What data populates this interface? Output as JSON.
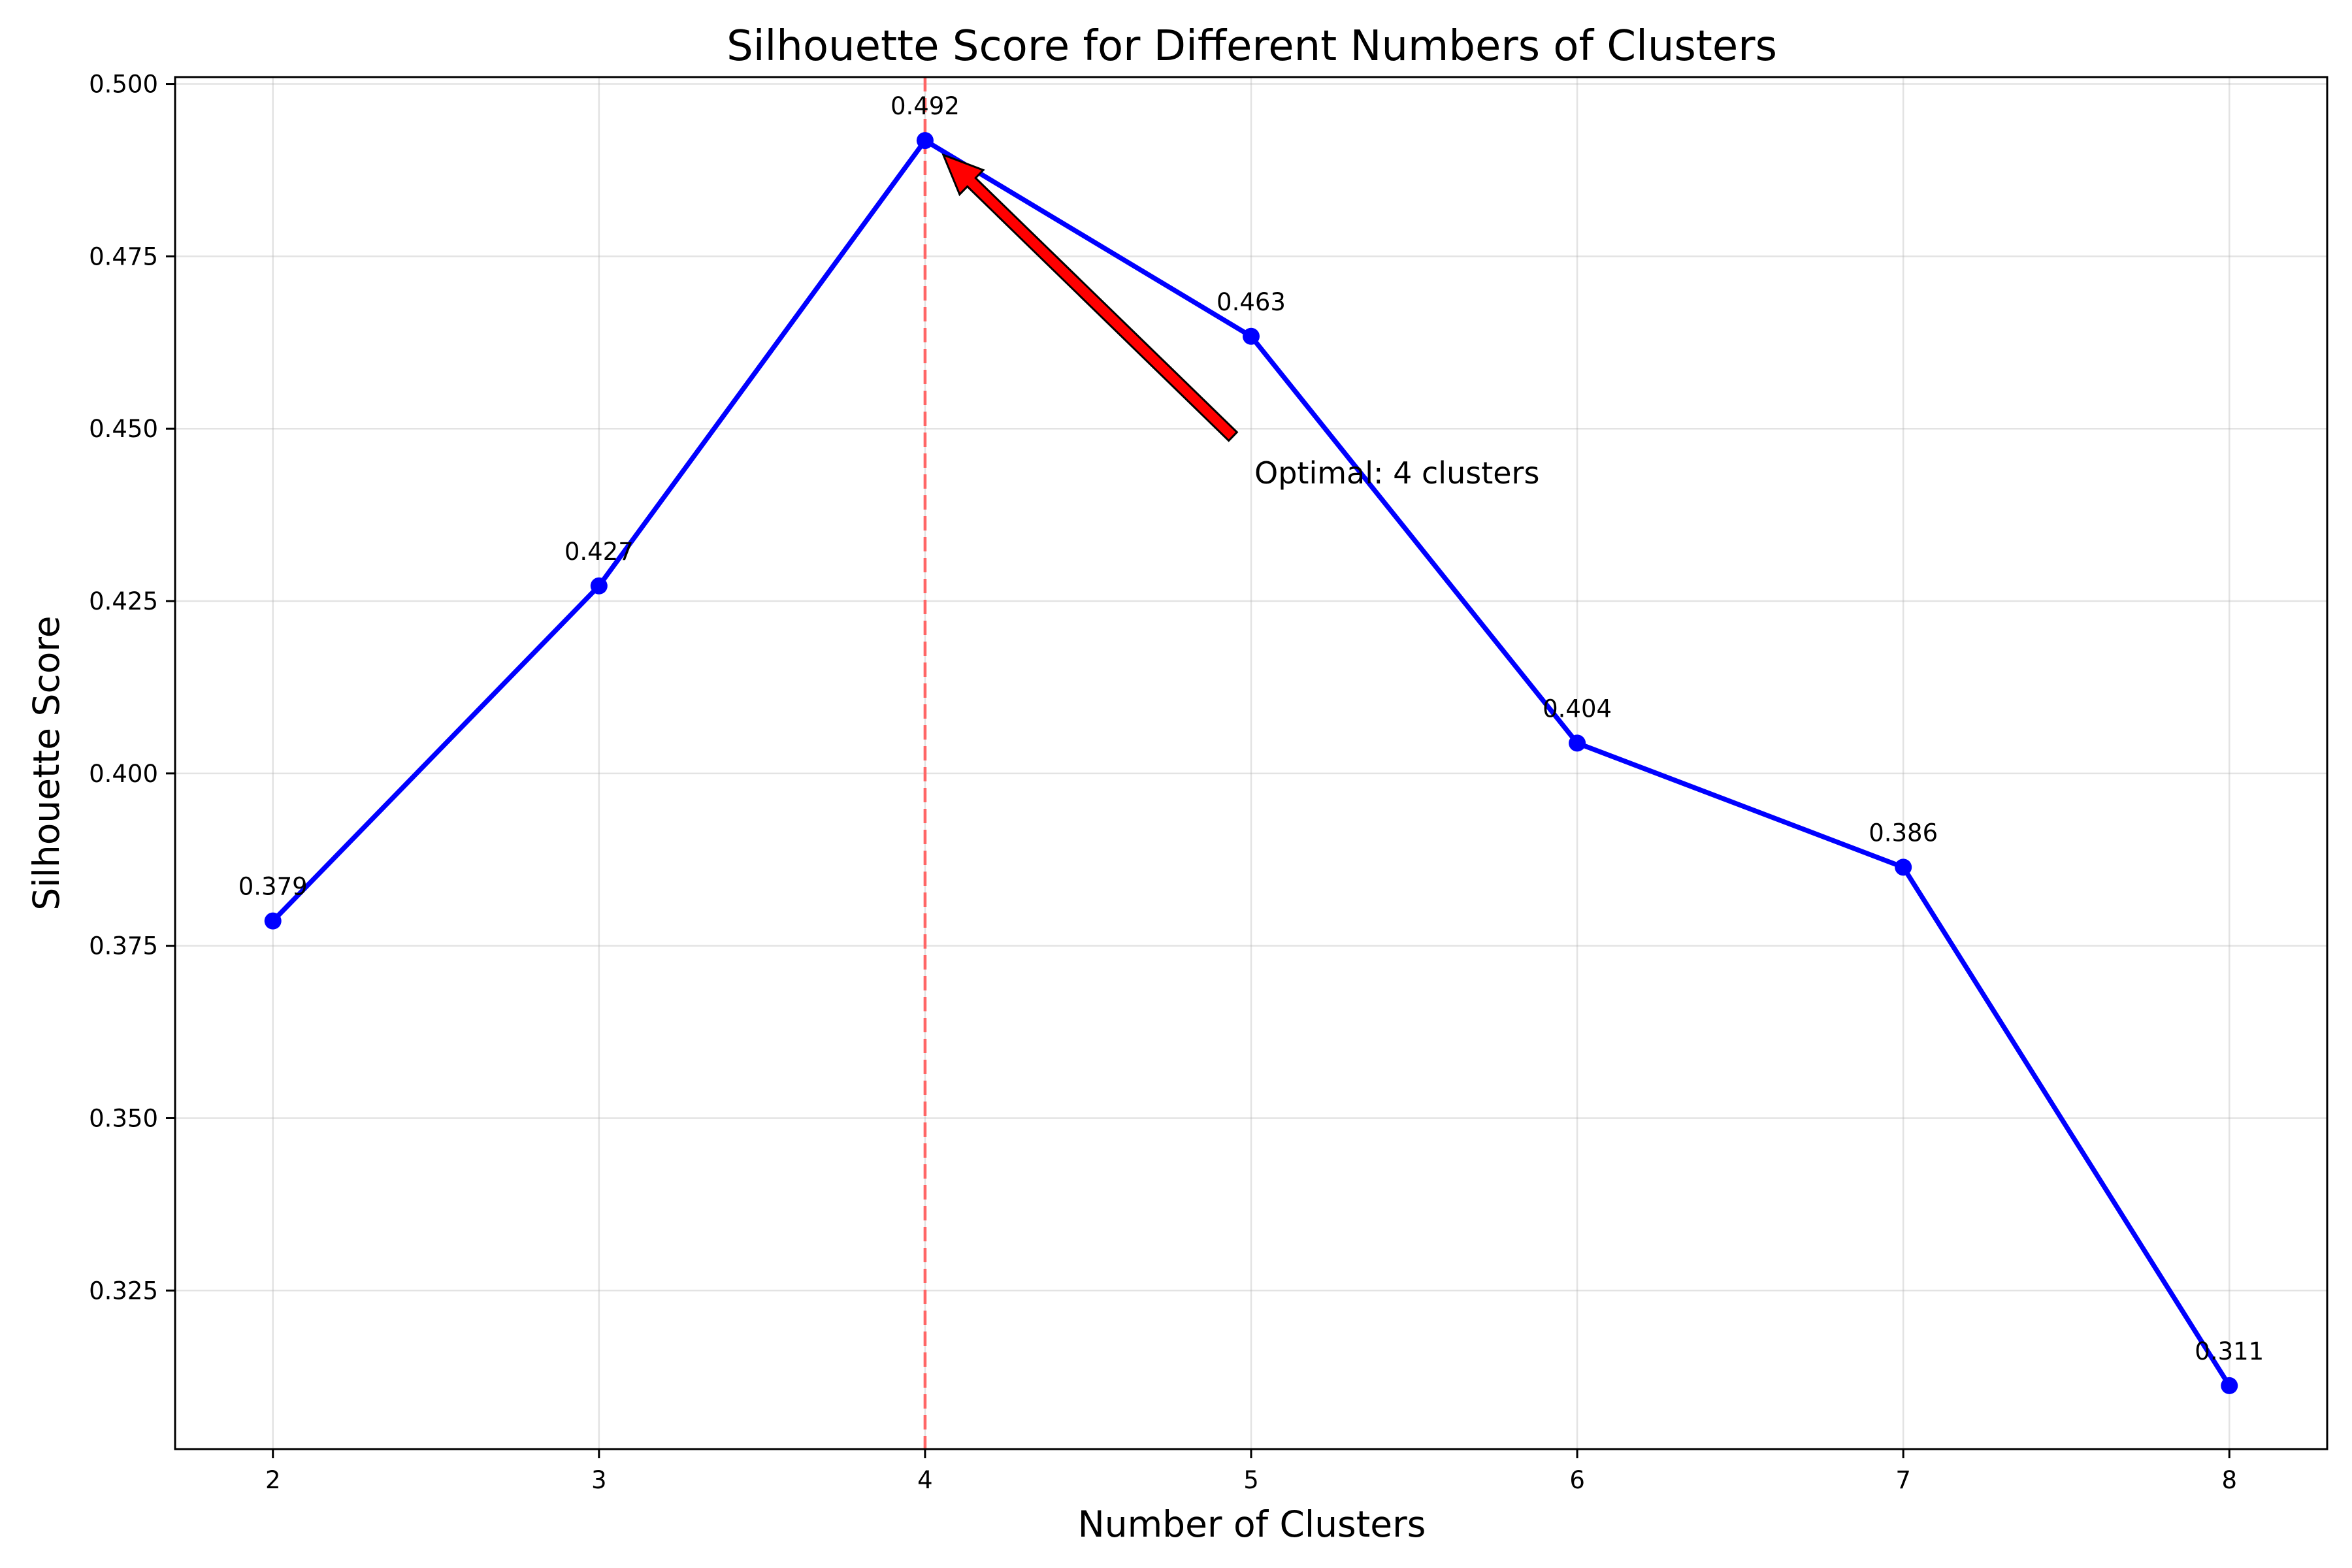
{
  "chart_data": {
    "type": "line",
    "title": "Silhouette Score for Different Numbers of Clusters",
    "xlabel": "Number of Clusters",
    "ylabel": "Silhouette Score",
    "x": [
      2,
      3,
      4,
      5,
      6,
      7,
      8
    ],
    "xticks": [
      "2",
      "3",
      "4",
      "5",
      "6",
      "7",
      "8"
    ],
    "xlim": [
      1.7,
      8.3
    ],
    "ylim": [
      0.302,
      0.501
    ],
    "yticks": [
      "0.325",
      "0.350",
      "0.375",
      "0.400",
      "0.425",
      "0.450",
      "0.475",
      "0.500"
    ],
    "series": [
      {
        "values": [
          0.3786,
          0.4272,
          0.4918,
          0.4634,
          0.4044,
          0.3864,
          0.3112
        ],
        "labels": [
          "0.379",
          "0.427",
          "0.492",
          "0.463",
          "0.404",
          "0.386",
          "0.311"
        ],
        "color": "#0000ff"
      }
    ],
    "reference_line": {
      "x": 4,
      "color": "#ff6666",
      "style": "dashed"
    },
    "annotation": {
      "text": "Optimal: 4 clusters",
      "target_x": 4,
      "target_y": 0.4918,
      "text_x": 5,
      "text_y": 0.445,
      "arrow_color": "#ff0000"
    },
    "grid": true,
    "legend": "none"
  }
}
